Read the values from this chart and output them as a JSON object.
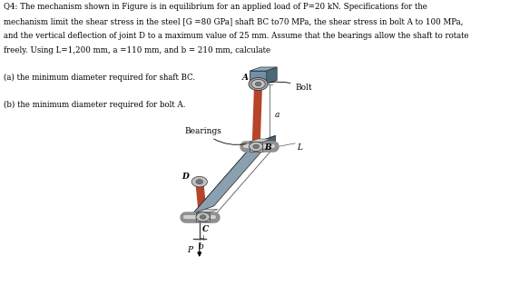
{
  "title_line1": "Q4: The mechanism shown in Figure is in equilibrium for an applied load of P=20 kN. Specifications for the",
  "title_line2": "mechanism limit the shear stress in the steel [G =80 GPa] shaft BC to70 MPa, the shear stress in bolt A to 100 MPa,",
  "title_line3": "and the vertical deflection of joint D to a maximum value of 25 mm. Assume that the bearings allow the shaft to rotate",
  "title_line4": "freely. Using L=1,200 mm, a =110 mm, and b = 210 mm, calculate",
  "sub_a": "(a) the minimum diameter required for shaft BC.",
  "sub_b": "(b) the minimum diameter required for bolt A.",
  "label_bolt": "Bolt",
  "label_bearings": "Bearings",
  "label_A": "A",
  "label_B": "B",
  "label_C": "C",
  "label_D": "D",
  "label_L": "L",
  "label_a": "a",
  "label_b": "b",
  "label_P": "P",
  "bg_color": "#ffffff",
  "text_color": "#000000",
  "arm_color": "#b5442a",
  "block_color": "#6b8090",
  "block_top_color": "#8aA0b0",
  "block_right_color": "#4a6070",
  "bearing_color": "#b0b0b0",
  "bolt_block_color": "#7090a8",
  "shaft_cyl_color": "#a8a8a8",
  "joint_color": "#c0c0c0"
}
